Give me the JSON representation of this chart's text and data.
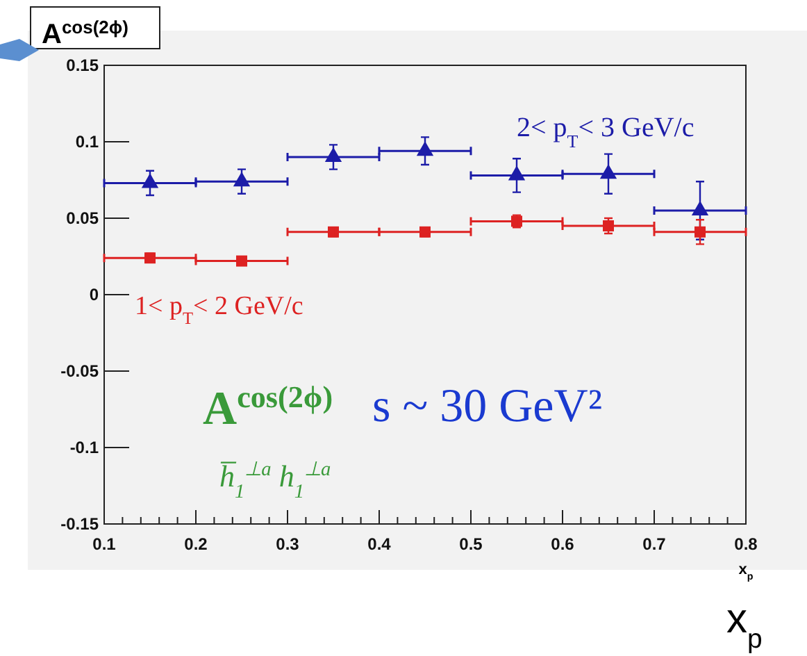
{
  "chart_data": {
    "type": "scatter",
    "ylabel": "A$^{cos(2ϕ)}$",
    "xlabel": "x$_{p}$",
    "x": [
      0.15,
      0.25,
      0.35,
      0.45,
      0.55,
      0.65,
      0.75
    ],
    "series": [
      {
        "name": "2< p$_{T}$< 3 GeV/c",
        "color": "#1c1ca8",
        "marker": "triangle",
        "values": [
          0.073,
          0.074,
          0.09,
          0.094,
          0.078,
          0.079,
          0.055
        ],
        "errors": [
          0.008,
          0.008,
          0.008,
          0.009,
          0.011,
          0.013,
          0.019
        ],
        "xerrors": [
          0.05,
          0.05,
          0.05,
          0.05,
          0.05,
          0.05,
          0.05
        ]
      },
      {
        "name": "1< p$_{T}$< 2 GeV/c",
        "color": "#dd2222",
        "marker": "square",
        "values": [
          0.024,
          0.022,
          0.041,
          0.041,
          0.048,
          0.045,
          0.041
        ],
        "errors": [
          0.003,
          null,
          0.003,
          0.003,
          0.004,
          0.005,
          0.008
        ],
        "xerrors": [
          0.05,
          0.05,
          0.05,
          0.05,
          0.05,
          0.05,
          0.05
        ]
      }
    ],
    "xlim": [
      0.1,
      0.8
    ],
    "xticks": [
      0.1,
      0.2,
      0.3,
      0.4,
      0.5,
      0.6,
      0.7,
      0.8
    ],
    "ylim": [
      -0.15,
      0.15
    ],
    "yticks": [
      -0.15,
      -0.1,
      -0.05,
      0,
      0.05,
      0.1,
      0.15
    ],
    "legend": false,
    "grid": false,
    "annotations": [
      "A$^{cos(2ϕ)}$",
      "h̅$_{1}$$^{⊥a}$ h$_{1}$$^{⊥a}$",
      "s ~ 30 GeV²",
      "x$_{p}$"
    ]
  }
}
